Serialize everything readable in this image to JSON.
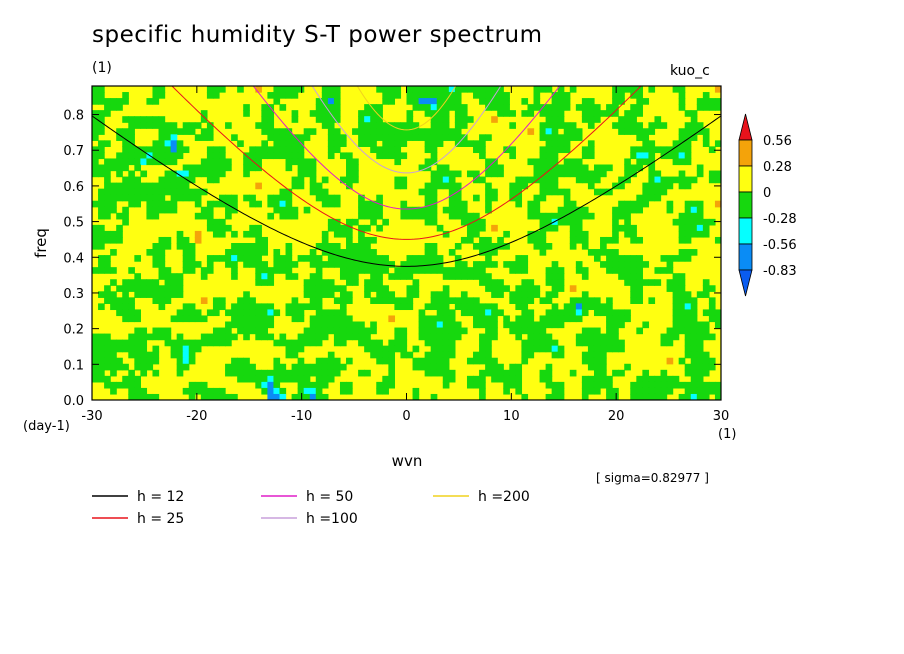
{
  "chart_data": {
    "type": "heatmap",
    "title": "specific humidity S-T power spectrum",
    "unit_label": "(1)",
    "model_label": "kuo_c",
    "xlabel": "wvn",
    "ylabel": "freq",
    "x_unit": "(1)",
    "y_unit": "(day-1)",
    "xlim": [
      -30,
      30
    ],
    "ylim": [
      0.0,
      0.88
    ],
    "x_ticks": [
      "-30",
      "-20",
      "-10",
      "0",
      "10",
      "20",
      "30"
    ],
    "y_ticks": [
      "0.0",
      "0.1",
      "0.2",
      "0.3",
      "0.4",
      "0.5",
      "0.6",
      "0.7",
      "0.8"
    ],
    "sigma_text": "[ sigma=0.82977 ]",
    "colorbar": {
      "levels": [
        "0.56",
        "0.28",
        "0",
        "-0.28",
        "-0.56",
        "-0.83"
      ],
      "colors": [
        "#e8131c",
        "#f4a30a",
        "#ffff11",
        "#16d80e",
        "#05ffff",
        "#0a8cf5",
        "#0a5cf0"
      ]
    },
    "dispersion_curves": [
      {
        "label": "h = 12",
        "h": 12,
        "color": "#000000"
      },
      {
        "label": "h = 25",
        "h": 25,
        "color": "#e8131c"
      },
      {
        "label": "h = 50",
        "h": 50,
        "color": "#e01ec8"
      },
      {
        "label": "h =100",
        "h": 100,
        "color": "#c8a0dc"
      },
      {
        "label": "h =200",
        "h": 200,
        "color": "#f0d21e"
      }
    ]
  }
}
